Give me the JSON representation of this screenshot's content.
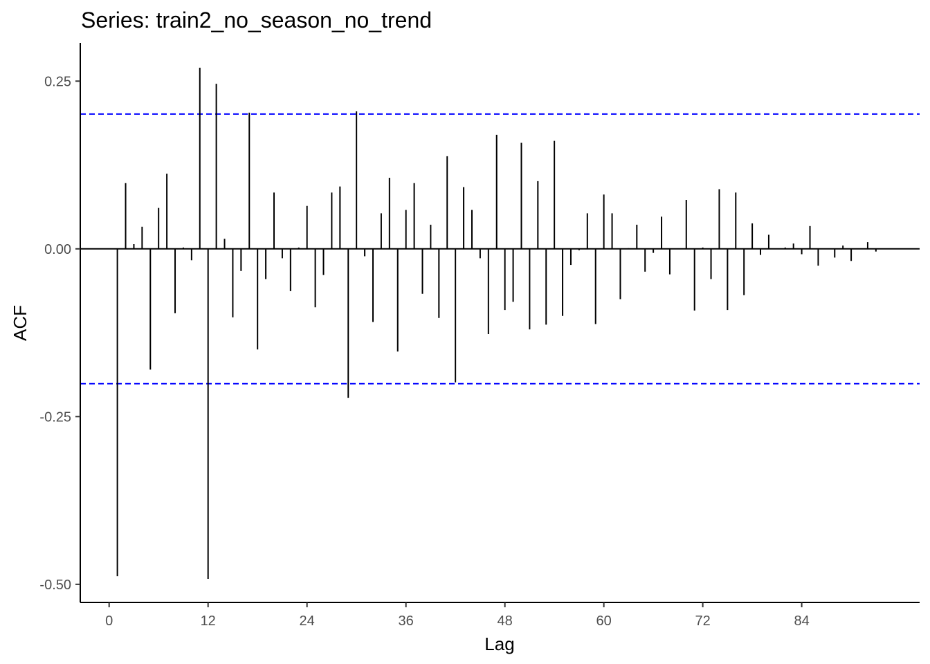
{
  "chart_data": {
    "type": "bar",
    "title": "Series: train2_no_season_no_trend",
    "xlabel": "Lag",
    "ylabel": "ACF",
    "xlim": [
      -3.5,
      98.3
    ],
    "ylim": [
      -0.527,
      0.307
    ],
    "x_ticks": [
      0,
      12,
      24,
      36,
      48,
      60,
      72,
      84
    ],
    "x_tick_labels": [
      "0",
      "12",
      "24",
      "36",
      "48",
      "60",
      "72",
      "84"
    ],
    "y_ticks": [
      -0.5,
      -0.25,
      0,
      0.25
    ],
    "y_tick_labels": [
      "-0.50",
      "-0.25",
      "0.00",
      "0.25"
    ],
    "confidence_bounds": [
      -0.201,
      0.201
    ],
    "confidence_color": "#0000ff",
    "grid": false,
    "lags": [
      1,
      2,
      3,
      4,
      5,
      6,
      7,
      8,
      9,
      10,
      11,
      12,
      13,
      14,
      15,
      16,
      17,
      18,
      19,
      20,
      21,
      22,
      23,
      24,
      25,
      26,
      27,
      28,
      29,
      30,
      31,
      32,
      33,
      34,
      35,
      36,
      37,
      38,
      39,
      40,
      41,
      42,
      43,
      44,
      45,
      46,
      47,
      48,
      49,
      50,
      51,
      52,
      53,
      54,
      55,
      56,
      57,
      58,
      59,
      60,
      61,
      62,
      63,
      64,
      65,
      66,
      67,
      68,
      69,
      70,
      71,
      72,
      73,
      74,
      75,
      76,
      77,
      78,
      79,
      80,
      81,
      82,
      83,
      84,
      85,
      86,
      87,
      88,
      89,
      90,
      91,
      92,
      93
    ],
    "values": [
      -0.488,
      0.098,
      0.007,
      0.033,
      -0.18,
      0.061,
      0.112,
      -0.096,
      0.002,
      -0.017,
      0.27,
      -0.492,
      0.246,
      0.015,
      -0.102,
      -0.033,
      0.203,
      -0.15,
      -0.045,
      0.084,
      -0.014,
      -0.063,
      0.002,
      0.064,
      -0.087,
      -0.039,
      0.084,
      0.093,
      -0.222,
      0.205,
      -0.011,
      -0.109,
      0.053,
      0.106,
      -0.153,
      0.058,
      0.098,
      -0.067,
      0.036,
      -0.103,
      0.138,
      -0.199,
      0.092,
      0.058,
      -0.014,
      -0.127,
      0.17,
      -0.091,
      -0.079,
      0.158,
      -0.12,
      0.101,
      -0.113,
      0.161,
      -0.1,
      -0.024,
      -0.002,
      0.053,
      -0.112,
      0.081,
      0.053,
      -0.075,
      0.001,
      0.036,
      -0.034,
      -0.006,
      0.048,
      -0.038,
      0.0,
      0.073,
      -0.092,
      0.002,
      -0.045,
      0.089,
      -0.091,
      0.084,
      -0.069,
      0.038,
      -0.009,
      0.021,
      0.0,
      0.002,
      0.008,
      -0.008,
      0.034,
      -0.025,
      0.0,
      -0.013,
      0.005,
      -0.018,
      0.0,
      0.01,
      -0.004
    ]
  }
}
